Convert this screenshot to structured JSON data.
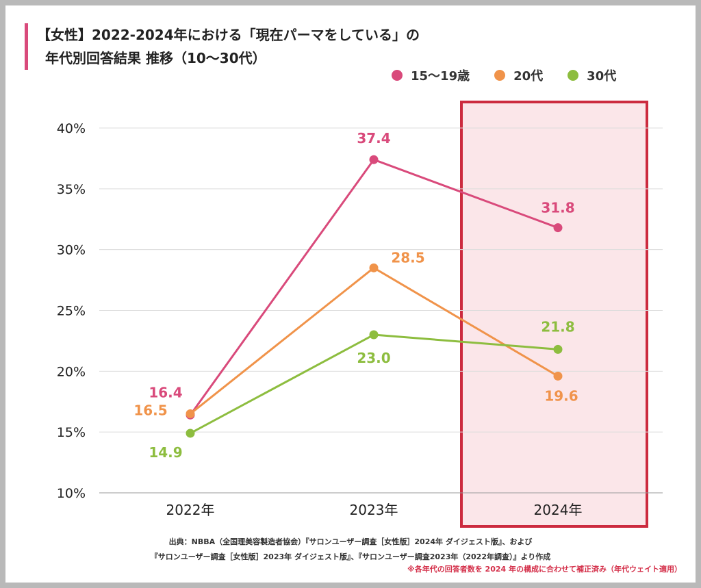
{
  "colors": {
    "series_15_19": "#d94a7b",
    "series_20s": "#f0934a",
    "series_30s": "#8dbd3f",
    "highlight_border": "#cc2b3f",
    "highlight_fill": "#fbe6e9",
    "grid": "#dcdcdc"
  },
  "title": {
    "line1": "【女性】2022-2024年における「現在パーマをしている」の",
    "line2": "年代別回答結果 推移（10〜30代）"
  },
  "footer": {
    "line1": "出典：NBBA（全国理美容製造者協会）『サロンユーザー調査［女性版］2024年 ダイジェスト版』、および",
    "line2": "『サロンユーザー調査［女性版］2023年 ダイジェスト版』、『サロンユーザー調査2023年（2022年調査）』より作成",
    "note": "※各年代の回答者数を 2024 年の構成に合わせて補正済み（年代ウェイト適用）"
  },
  "chart_data": {
    "type": "line",
    "categories": [
      "2022年",
      "2023年",
      "2024年"
    ],
    "series": [
      {
        "name": "15〜19歳",
        "color": "#d94a7b",
        "values": [
          16.4,
          37.4,
          31.8
        ],
        "labels": [
          "16.4",
          "37.4",
          "31.8"
        ]
      },
      {
        "name": "20代",
        "color": "#f0934a",
        "values": [
          16.5,
          28.5,
          19.6
        ],
        "labels": [
          "16.5",
          "28.5",
          "19.6"
        ]
      },
      {
        "name": "30代",
        "color": "#8dbd3f",
        "values": [
          14.9,
          23.0,
          21.8
        ],
        "labels": [
          "14.9",
          "23.0",
          "21.8"
        ]
      }
    ],
    "y_ticks": [
      10,
      15,
      20,
      25,
      30,
      35,
      40
    ],
    "y_tick_labels": [
      "10%",
      "15%",
      "20%",
      "25%",
      "30%",
      "35%",
      "40%"
    ],
    "ylim": [
      10,
      40
    ],
    "highlight_category": "2024年",
    "grid": true,
    "legend_position": "top-right"
  }
}
